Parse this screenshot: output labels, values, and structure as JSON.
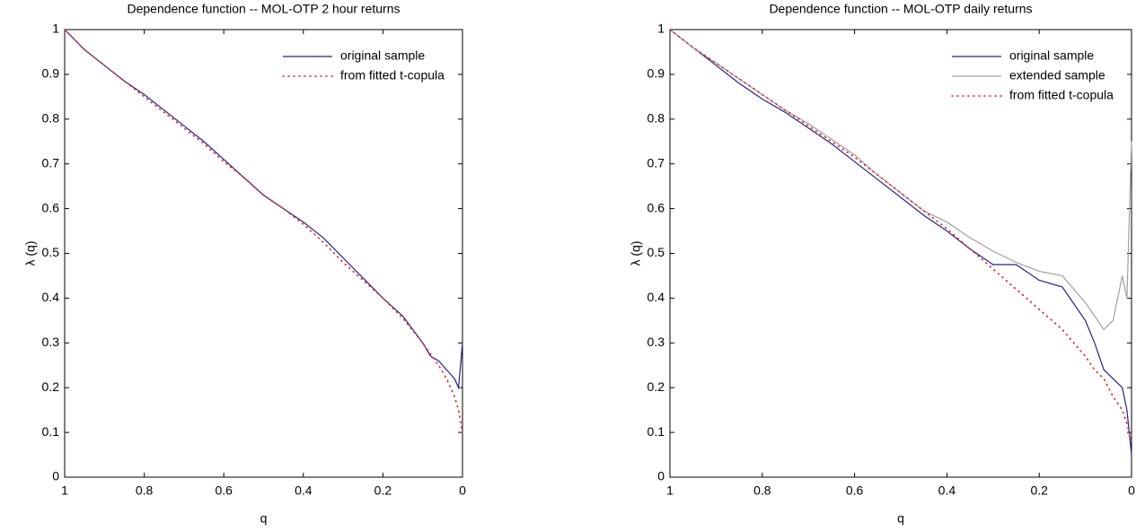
{
  "chart_data": [
    {
      "type": "line",
      "title": "Dependence function -- MOL-OTP 2 hour returns",
      "x_label": "q",
      "y_label": "λ (q)",
      "x": [
        1,
        0.95,
        0.9,
        0.85,
        0.8,
        0.75,
        0.7,
        0.65,
        0.6,
        0.55,
        0.5,
        0.45,
        0.4,
        0.35,
        0.3,
        0.25,
        0.2,
        0.15,
        0.1,
        0.08,
        0.06,
        0.04,
        0.02,
        0.01,
        0
      ],
      "series": [
        {
          "name": "original sample",
          "color": "#23238e",
          "dash": "solid",
          "values": [
            1,
            0.955,
            0.92,
            0.885,
            0.855,
            0.82,
            0.785,
            0.75,
            0.71,
            0.67,
            0.63,
            0.6,
            0.57,
            0.535,
            0.49,
            0.445,
            0.4,
            0.36,
            0.3,
            0.27,
            0.26,
            0.24,
            0.22,
            0.2,
            0.3
          ]
        },
        {
          "name": "from fitted t-copula",
          "color": "#e02020",
          "dash": "dotted",
          "values": [
            1,
            0.955,
            0.92,
            0.885,
            0.85,
            0.815,
            0.78,
            0.745,
            0.705,
            0.67,
            0.63,
            0.6,
            0.565,
            0.525,
            0.48,
            0.44,
            0.4,
            0.355,
            0.3,
            0.275,
            0.25,
            0.22,
            0.18,
            0.15,
            0.1
          ]
        }
      ],
      "xlim": [
        1,
        0
      ],
      "ylim": [
        0,
        1
      ],
      "xticks": [
        1,
        0.8,
        0.6,
        0.4,
        0.2,
        0
      ],
      "yticks": [
        0,
        0.1,
        0.2,
        0.3,
        0.4,
        0.5,
        0.6,
        0.7,
        0.8,
        0.9,
        1
      ],
      "legend": "upper right"
    },
    {
      "type": "line",
      "title": "Dependence function -- MOL-OTP daily returns",
      "x_label": "q",
      "y_label": "λ (q)",
      "x": [
        1,
        0.95,
        0.9,
        0.85,
        0.8,
        0.75,
        0.7,
        0.65,
        0.6,
        0.55,
        0.5,
        0.45,
        0.4,
        0.35,
        0.3,
        0.25,
        0.2,
        0.15,
        0.1,
        0.08,
        0.06,
        0.04,
        0.02,
        0.01,
        0
      ],
      "series": [
        {
          "name": "original sample",
          "color": "#23238e",
          "dash": "solid",
          "values": [
            1,
            0.96,
            0.92,
            0.88,
            0.845,
            0.815,
            0.78,
            0.745,
            0.705,
            0.665,
            0.625,
            0.585,
            0.55,
            0.51,
            0.475,
            0.475,
            0.44,
            0.425,
            0.35,
            0.3,
            0.24,
            0.22,
            0.2,
            0.15,
            0.05
          ]
        },
        {
          "name": "extended sample",
          "color": "#a0a0a0",
          "dash": "solid",
          "values": [
            1,
            0.96,
            0.925,
            0.89,
            0.855,
            0.82,
            0.79,
            0.755,
            0.72,
            0.675,
            0.635,
            0.595,
            0.57,
            0.535,
            0.505,
            0.48,
            0.46,
            0.45,
            0.39,
            0.36,
            0.33,
            0.35,
            0.45,
            0.4,
            0.75
          ]
        },
        {
          "name": "from fitted t-copula",
          "color": "#e02020",
          "dash": "dotted",
          "values": [
            1,
            0.96,
            0.925,
            0.89,
            0.855,
            0.82,
            0.785,
            0.75,
            0.715,
            0.675,
            0.635,
            0.595,
            0.555,
            0.51,
            0.465,
            0.42,
            0.375,
            0.33,
            0.27,
            0.24,
            0.22,
            0.18,
            0.15,
            0.12,
            0.08
          ]
        }
      ],
      "xlim": [
        1,
        0
      ],
      "ylim": [
        0,
        1
      ],
      "xticks": [
        1,
        0.8,
        0.6,
        0.4,
        0.2,
        0
      ],
      "yticks": [
        0,
        0.1,
        0.2,
        0.3,
        0.4,
        0.5,
        0.6,
        0.7,
        0.8,
        0.9,
        1
      ],
      "legend": "upper right"
    }
  ]
}
